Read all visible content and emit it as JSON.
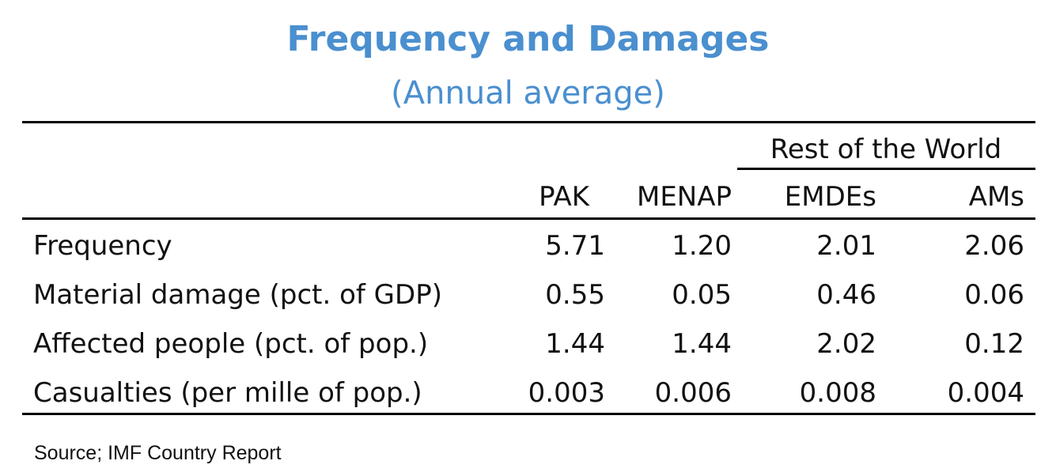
{
  "chart_data": {
    "type": "table",
    "title": "Frequency and Damages",
    "subtitle": "(Annual average)",
    "group_header": "Rest of the World",
    "columns": [
      "PAK",
      "MENAP",
      "EMDEs",
      "AMs"
    ],
    "rows": [
      {
        "label": "Frequency",
        "values": [
          "5.71",
          "1.20",
          "2.01",
          "2.06"
        ]
      },
      {
        "label": "Material damage (pct. of GDP)",
        "values": [
          "0.55",
          "0.05",
          "0.46",
          "0.06"
        ]
      },
      {
        "label": "Affected people (pct. of pop.)",
        "values": [
          "1.44",
          "1.44",
          "2.02",
          "0.12"
        ]
      },
      {
        "label": "Casualties (per mille of pop.)",
        "values": [
          "0.003",
          "0.006",
          "0.008",
          "0.004"
        ]
      }
    ],
    "source": "Source; IMF Country Report",
    "title_color": "#4a8fcf"
  }
}
